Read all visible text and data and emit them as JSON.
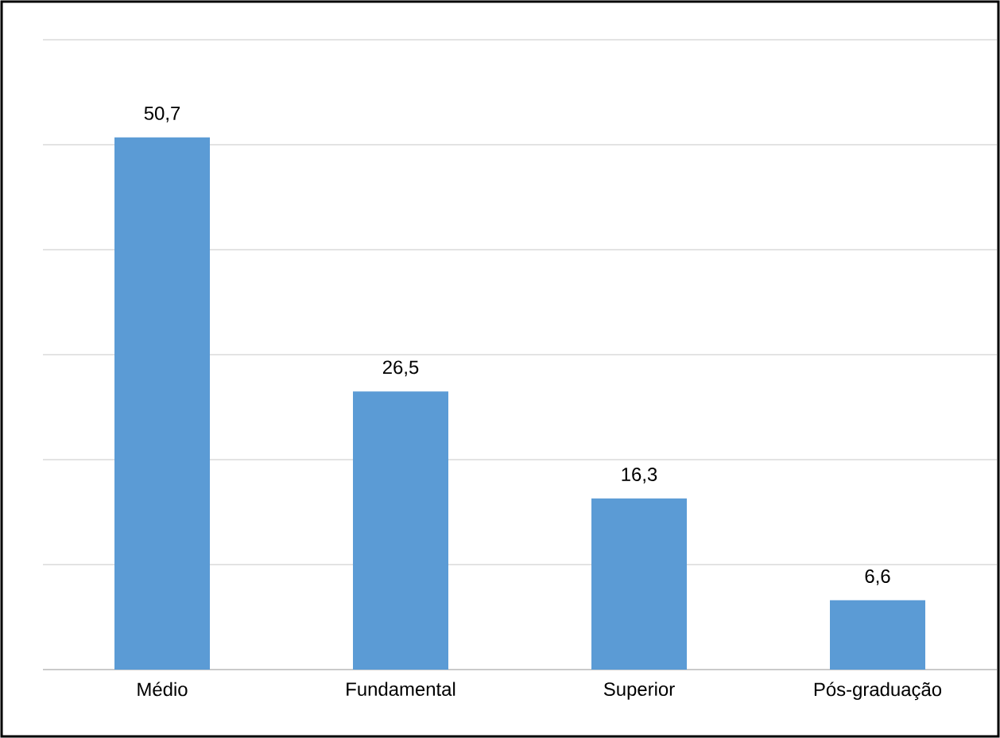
{
  "chart_data": {
    "type": "bar",
    "categories": [
      "Médio",
      "Fundamental",
      "Superior",
      "Pós-graduação"
    ],
    "values": [
      50.7,
      26.5,
      16.3,
      6.6
    ],
    "value_labels": [
      "50,7",
      "26,5",
      "16,3",
      "6,6"
    ],
    "color": "#5b9bd5",
    "ylim": [
      0,
      60
    ],
    "yticks": [
      {
        "value": 0,
        "label": null
      },
      {
        "value": 10,
        "label": null
      },
      {
        "value": 20,
        "label": null
      },
      {
        "value": 30,
        "label": null
      },
      {
        "value": 40,
        "label": null
      },
      {
        "value": 50,
        "label": null
      },
      {
        "value": 60,
        "label": null
      }
    ],
    "grid": "y",
    "tick_labels": "x"
  }
}
